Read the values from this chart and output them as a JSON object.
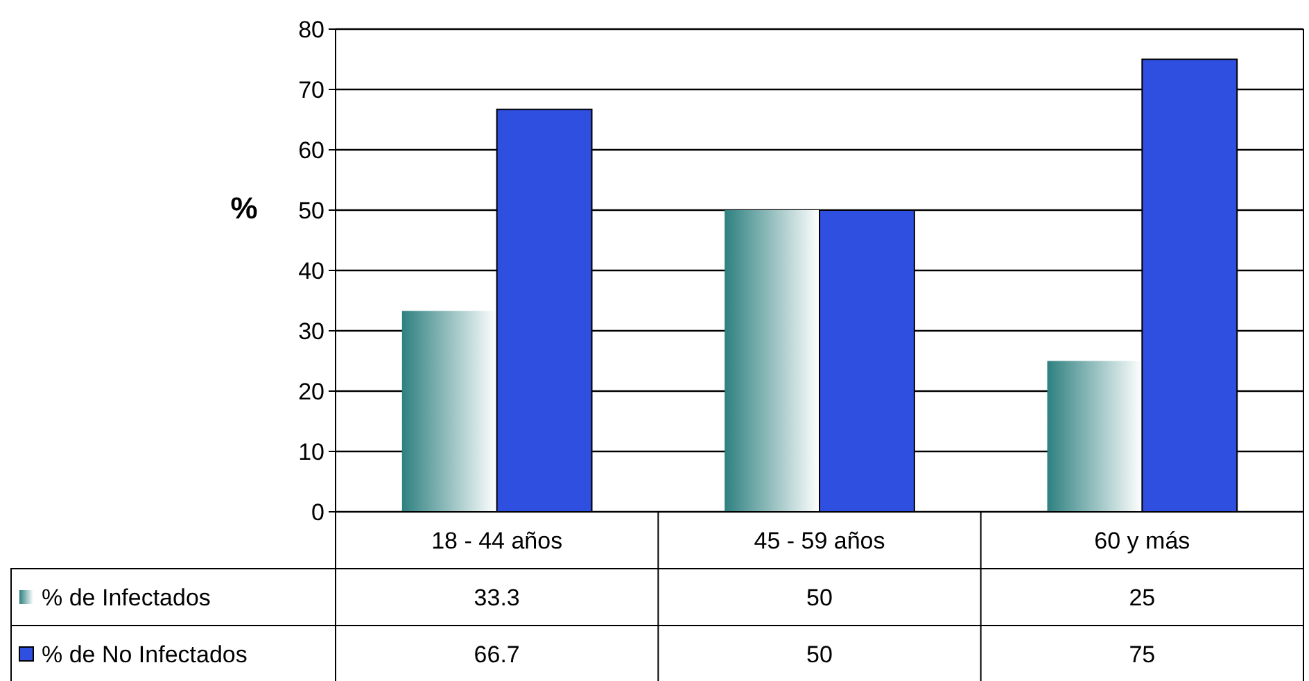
{
  "chart_data": {
    "type": "bar",
    "ylabel": "%",
    "categories": [
      "18 - 44 años",
      "45 - 59 años",
      "60 y más"
    ],
    "series": [
      {
        "name": "% de Infectados",
        "color": "#2e8080",
        "values": [
          33.3,
          50,
          25
        ]
      },
      {
        "name": "% de No Infectados",
        "color": "#2f4fe0",
        "values": [
          66.7,
          50,
          75
        ]
      }
    ],
    "ylim": [
      0,
      80
    ],
    "yticks": [
      0,
      10,
      20,
      30,
      40,
      50,
      60,
      70,
      80
    ],
    "grid": "y",
    "legend": "bottom",
    "data_labels": true
  }
}
